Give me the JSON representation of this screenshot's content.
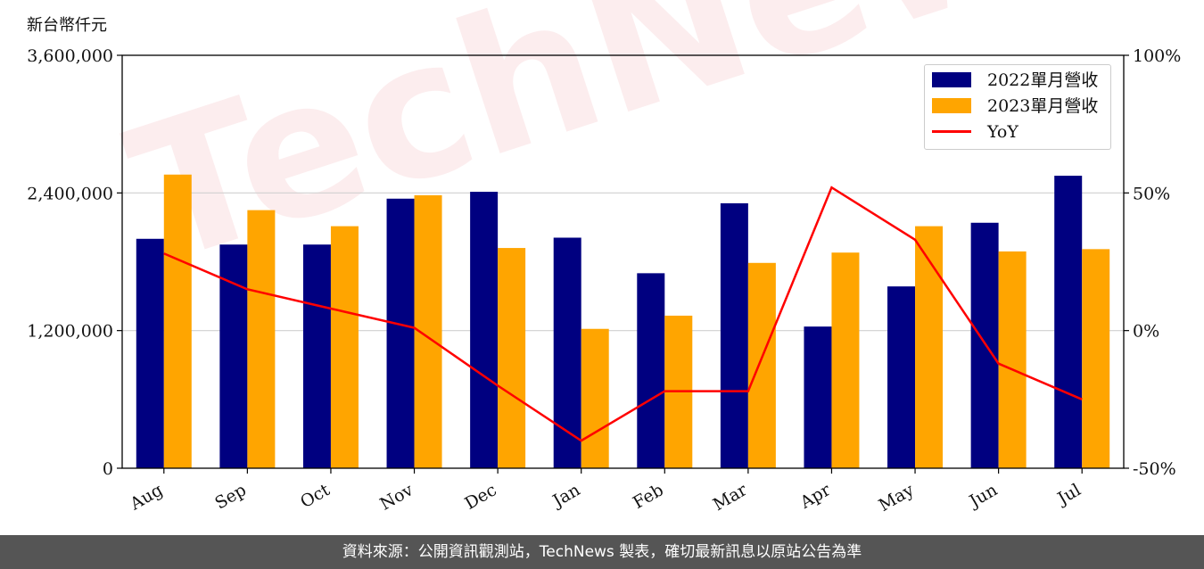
{
  "unit_label": "新台幣仟元",
  "watermark": "TechNews",
  "footer_text": "資料來源：公開資訊觀測站，TechNews 製表，確切最新訊息以原站公告為準",
  "chart_data": {
    "type": "bar",
    "categories": [
      "Aug",
      "Sep",
      "Oct",
      "Nov",
      "Dec",
      "Jan",
      "Feb",
      "Mar",
      "Apr",
      "May",
      "Jun",
      "Jul"
    ],
    "series": [
      {
        "name": "2022單月營收",
        "type": "bar",
        "axis": "left",
        "color": "#000080",
        "values": [
          2000000,
          1950000,
          1950000,
          2350000,
          2410000,
          2010000,
          1700000,
          2310000,
          1235000,
          1585000,
          2140000,
          2550000
        ]
      },
      {
        "name": "2023單月營收",
        "type": "bar",
        "axis": "left",
        "color": "#FFA500",
        "values": [
          2560000,
          2250000,
          2110000,
          2380000,
          1920000,
          1215000,
          1330000,
          1790000,
          1880000,
          2110000,
          1890000,
          1910000
        ]
      },
      {
        "name": "YoY",
        "type": "line",
        "axis": "right",
        "color": "#FF0000",
        "values": [
          28,
          15,
          8,
          1,
          -20,
          -40,
          -22,
          -22,
          52,
          33,
          -12,
          -25
        ]
      }
    ],
    "y_left": {
      "ylim": [
        0,
        3600000
      ],
      "ticks": [
        0,
        1200000,
        2400000,
        3600000
      ],
      "tick_labels": [
        "0",
        "1,200,000",
        "2,400,000",
        "3,600,000"
      ]
    },
    "y_right": {
      "ylim": [
        -50,
        100
      ],
      "ticks": [
        -50,
        0,
        50,
        100
      ],
      "tick_labels": [
        "-50%",
        "0%",
        "50%",
        "100%"
      ]
    },
    "grid": "horizontal",
    "legend_position": "top-right"
  }
}
